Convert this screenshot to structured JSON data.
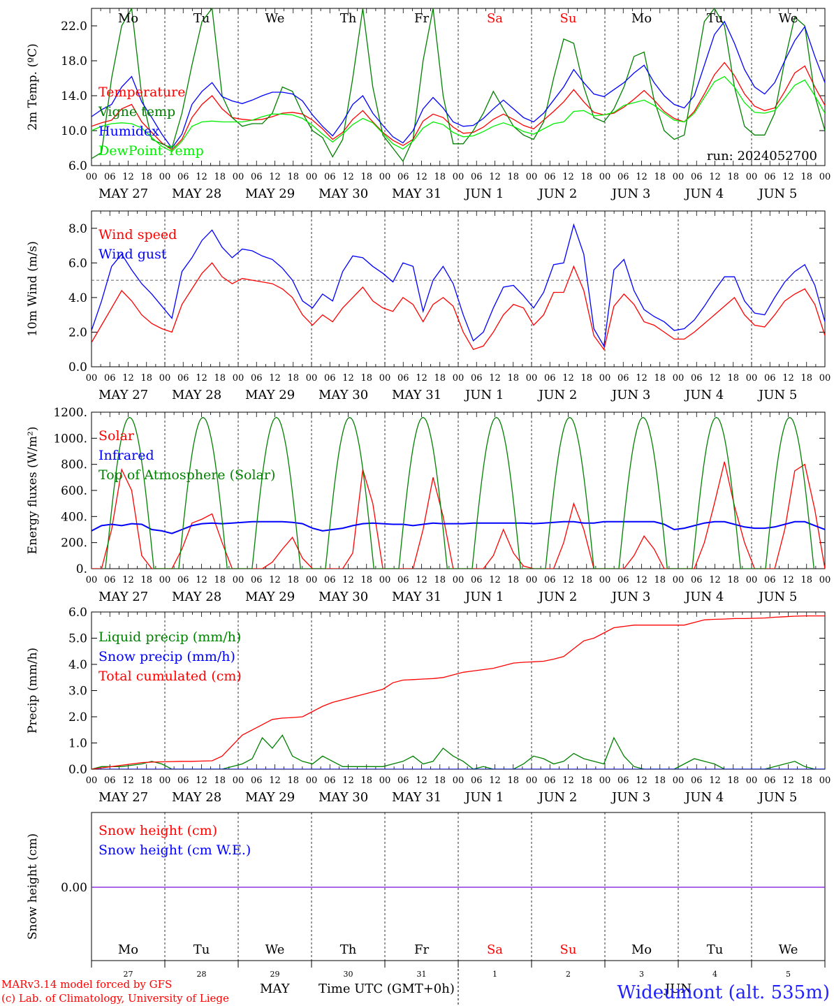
{
  "chart_data": [
    {
      "type": "line",
      "ylabel": "2m Temp. (ºC)",
      "ylim": [
        6.0,
        24.0
      ],
      "yticks": [
        "6.0",
        "10.0",
        "14.0",
        "18.0",
        "22.0"
      ],
      "annotation": "run: 2024052700",
      "legend": [
        "Temperature",
        "Vigne temp",
        "Humidex",
        "DewPoint Temp"
      ],
      "series": [
        {
          "name": "Temperature",
          "color": "#ff0000",
          "values": [
            10.5,
            10.9,
            11.2,
            12.5,
            13.0,
            11.0,
            9.8,
            8.6,
            7.8,
            9.0,
            11.5,
            13.0,
            14.0,
            12.5,
            11.5,
            11.3,
            11.2,
            11.3,
            11.6,
            12.0,
            12.1,
            11.9,
            11.2,
            10.2,
            9.0,
            9.8,
            11.3,
            12.3,
            11.0,
            9.8,
            8.9,
            8.3,
            9.0,
            11.1,
            11.9,
            11.5,
            10.4,
            9.7,
            9.8,
            10.4,
            11.3,
            11.9,
            11.3,
            10.6,
            10.2,
            11.2,
            12.2,
            13.3,
            14.7,
            13.3,
            12.1,
            11.8,
            12.0,
            12.7,
            13.6,
            14.6,
            13.5,
            12.2,
            11.4,
            11.0,
            12.2,
            14.2,
            16.4,
            17.8,
            16.3,
            14.2,
            12.8,
            12.3,
            12.6,
            14.5,
            16.6,
            17.4,
            15.0,
            12.9
          ]
        },
        {
          "name": "Vigne temp",
          "color": "#008000",
          "values": [
            6.8,
            7.5,
            16.0,
            22.0,
            24.0,
            14.0,
            9.0,
            8.5,
            8.0,
            12.0,
            17.5,
            22.5,
            24.0,
            14.0,
            11.5,
            10.5,
            10.8,
            10.8,
            12.0,
            15.0,
            14.5,
            12.0,
            10.0,
            9.2,
            7.0,
            9.0,
            16.0,
            24.0,
            15.0,
            9.5,
            8.0,
            6.5,
            9.0,
            18.0,
            24.0,
            14.0,
            8.5,
            8.5,
            10.0,
            12.0,
            14.5,
            12.5,
            10.5,
            9.5,
            9.0,
            11.0,
            16.0,
            20.5,
            20.0,
            15.0,
            11.5,
            11.0,
            12.5,
            15.0,
            18.5,
            19.0,
            13.5,
            10.0,
            9.0,
            9.5,
            16.0,
            22.5,
            24.0,
            22.0,
            15.0,
            10.5,
            9.5,
            9.5,
            12.0,
            18.0,
            23.0,
            22.0,
            14.0,
            10.0
          ]
        },
        {
          "name": "Humidex",
          "color": "#0000ff",
          "values": [
            11.6,
            12.4,
            13.0,
            15.0,
            16.2,
            13.3,
            11.5,
            9.6,
            8.0,
            9.6,
            13.0,
            14.5,
            15.5,
            13.9,
            13.4,
            13.1,
            13.5,
            14.0,
            14.4,
            14.4,
            14.2,
            13.4,
            11.8,
            10.5,
            9.4,
            11.0,
            13.0,
            14.0,
            12.0,
            10.6,
            9.3,
            8.6,
            10.0,
            12.5,
            13.8,
            12.6,
            11.0,
            10.5,
            10.6,
            11.4,
            12.5,
            13.5,
            12.5,
            11.5,
            11.0,
            12.0,
            13.5,
            15.0,
            17.0,
            15.5,
            14.2,
            13.9,
            14.7,
            15.5,
            16.6,
            17.5,
            15.5,
            14.0,
            13.0,
            12.6,
            14.0,
            17.5,
            21.0,
            22.5,
            20.0,
            17.0,
            15.0,
            14.2,
            15.5,
            18.0,
            20.3,
            21.9,
            18.5,
            15.5
          ]
        },
        {
          "name": "DewPoint Temp",
          "color": "#00ee00",
          "values": [
            10.0,
            10.5,
            10.8,
            10.9,
            10.8,
            10.3,
            9.2,
            8.2,
            7.6,
            8.8,
            10.5,
            11.0,
            11.1,
            11.0,
            11.0,
            11.0,
            11.2,
            11.6,
            11.9,
            11.9,
            11.8,
            11.4,
            10.6,
            9.6,
            8.7,
            9.6,
            10.7,
            11.4,
            10.9,
            9.7,
            8.5,
            7.9,
            8.8,
            10.3,
            11.0,
            10.7,
            9.8,
            9.3,
            9.4,
            9.9,
            10.5,
            10.9,
            10.5,
            9.9,
            9.6,
            10.2,
            10.8,
            11.0,
            12.2,
            12.3,
            11.7,
            11.8,
            12.1,
            12.9,
            13.2,
            13.5,
            12.9,
            12.0,
            11.2,
            11.0,
            12.0,
            13.8,
            15.6,
            16.2,
            15.0,
            13.2,
            12.1,
            12.0,
            12.3,
            13.7,
            15.2,
            15.8,
            14.0,
            12.0
          ]
        }
      ]
    },
    {
      "type": "line",
      "ylabel": "10m Wind (m/s)",
      "ylim": [
        0.0,
        9.0
      ],
      "yticks": [
        "0.0",
        "2.0",
        "4.0",
        "6.0",
        "8.0"
      ],
      "reference_line": 5.0,
      "legend": [
        "Wind speed",
        "Wind gust"
      ],
      "series": [
        {
          "name": "Wind speed",
          "color": "#ff0000",
          "values": [
            1.4,
            2.4,
            3.4,
            4.4,
            3.8,
            3.0,
            2.5,
            2.2,
            2.0,
            3.6,
            4.5,
            5.4,
            6.0,
            5.2,
            4.8,
            5.1,
            5.0,
            4.9,
            4.8,
            4.5,
            4.0,
            3.0,
            2.4,
            3.0,
            2.6,
            3.4,
            4.0,
            4.6,
            3.8,
            3.4,
            3.2,
            4.0,
            3.6,
            2.6,
            3.6,
            4.0,
            3.5,
            2.0,
            1.0,
            1.2,
            2.0,
            3.0,
            3.6,
            3.4,
            2.4,
            3.0,
            4.3,
            4.3,
            5.8,
            4.4,
            1.8,
            1.0,
            3.5,
            4.2,
            3.6,
            2.6,
            2.4,
            2.0,
            1.6,
            1.6,
            2.0,
            2.5,
            3.0,
            3.5,
            4.0,
            3.0,
            2.4,
            2.3,
            3.0,
            3.8,
            4.2,
            4.5,
            3.6,
            1.8
          ]
        },
        {
          "name": "Wind gust",
          "color": "#0000ff",
          "values": [
            2.1,
            3.8,
            5.8,
            6.5,
            5.6,
            4.8,
            4.2,
            3.5,
            2.8,
            5.5,
            6.3,
            7.3,
            7.9,
            6.9,
            6.3,
            6.8,
            6.7,
            6.4,
            6.2,
            5.7,
            5.0,
            3.8,
            3.4,
            4.2,
            3.8,
            5.5,
            6.4,
            6.3,
            5.8,
            5.4,
            4.9,
            6.0,
            5.8,
            3.2,
            5.0,
            5.8,
            4.8,
            3.0,
            1.5,
            2.0,
            3.4,
            4.6,
            4.7,
            4.1,
            3.4,
            4.3,
            5.9,
            6.0,
            8.2,
            6.5,
            2.2,
            1.2,
            5.6,
            6.2,
            4.4,
            3.3,
            2.9,
            2.6,
            2.1,
            2.2,
            2.7,
            3.5,
            4.4,
            5.2,
            5.2,
            3.8,
            3.1,
            3.0,
            4.0,
            4.9,
            5.5,
            5.9,
            4.7,
            2.6
          ]
        }
      ]
    },
    {
      "type": "line",
      "ylabel": "Energy fluxes (W/m²)",
      "ylim": [
        0,
        1200
      ],
      "yticks": [
        "0.",
        "200.",
        "400.",
        "600.",
        "800.",
        "1000.",
        "1200."
      ],
      "legend": [
        "Solar",
        "Infrared",
        "Top of Atmosphere (Solar)"
      ],
      "series": [
        {
          "name": "Solar",
          "color": "#ff0000",
          "values": [
            0,
            0,
            300,
            760,
            600,
            100,
            0,
            0,
            0,
            150,
            350,
            380,
            420,
            200,
            0,
            0,
            0,
            0,
            50,
            150,
            240,
            80,
            0,
            0,
            0,
            0,
            120,
            760,
            500,
            0,
            0,
            0,
            0,
            300,
            700,
            400,
            0,
            0,
            0,
            0,
            100,
            300,
            120,
            20,
            0,
            0,
            0,
            200,
            500,
            300,
            0,
            0,
            0,
            0,
            100,
            250,
            150,
            0,
            0,
            0,
            0,
            200,
            500,
            820,
            480,
            200,
            0,
            0,
            0,
            300,
            750,
            800,
            450,
            0
          ]
        },
        {
          "name": "Infrared",
          "color": "#0000ff",
          "values": [
            290,
            330,
            340,
            330,
            345,
            340,
            300,
            290,
            270,
            300,
            330,
            345,
            350,
            345,
            350,
            355,
            360,
            360,
            360,
            360,
            355,
            345,
            310,
            290,
            300,
            310,
            330,
            345,
            350,
            345,
            340,
            340,
            330,
            340,
            350,
            345,
            345,
            345,
            350,
            350,
            350,
            350,
            350,
            350,
            345,
            350,
            355,
            360,
            360,
            350,
            350,
            360,
            360,
            360,
            360,
            360,
            360,
            340,
            300,
            310,
            330,
            350,
            360,
            360,
            340,
            320,
            310,
            310,
            320,
            340,
            360,
            360,
            330,
            300
          ]
        },
        {
          "name": "Top of Atmosphere (Solar)",
          "color": "#008000",
          "values": []
        }
      ]
    },
    {
      "type": "line",
      "ylabel": "Precip (mm/h)",
      "ylim": [
        0.0,
        6.0
      ],
      "yticks": [
        "0.0",
        "1.0",
        "2.0",
        "3.0",
        "4.0",
        "5.0",
        "6.0"
      ],
      "legend": [
        "Liquid precip (mm/h)",
        "Snow precip (mm/h)",
        "Total cumulated (cm)"
      ],
      "series": [
        {
          "name": "Liquid precip (mm/h)",
          "color": "#008000",
          "values": [
            0,
            0.1,
            0.1,
            0.1,
            0.15,
            0.2,
            0.3,
            0.2,
            0,
            0,
            0,
            0,
            0,
            0,
            0.1,
            0.2,
            0.4,
            1.2,
            0.8,
            1.3,
            0.5,
            0.3,
            0.2,
            0.5,
            0.3,
            0.1,
            0.1,
            0.1,
            0.1,
            0.1,
            0.2,
            0.3,
            0.5,
            0.2,
            0.3,
            0.8,
            0.5,
            0.3,
            0,
            0.1,
            0,
            0,
            0,
            0.2,
            0.5,
            0.4,
            0.2,
            0.3,
            0.6,
            0.4,
            0.3,
            0.2,
            1.2,
            0.5,
            0.1,
            0,
            0,
            0,
            0,
            0.2,
            0.4,
            0.3,
            0.2,
            0,
            0,
            0,
            0,
            0,
            0.1,
            0.2,
            0.3,
            0.1,
            0,
            0
          ]
        },
        {
          "name": "Snow precip (mm/h)",
          "color": "#0000ff",
          "values": []
        },
        {
          "name": "Total cumulated (cm)",
          "color": "#ff0000",
          "values": [
            0.0,
            0.05,
            0.1,
            0.15,
            0.2,
            0.25,
            0.27,
            0.28,
            0.29,
            0.3,
            0.3,
            0.31,
            0.32,
            0.5,
            0.9,
            1.3,
            1.5,
            1.7,
            1.9,
            1.95,
            1.97,
            2.0,
            2.2,
            2.4,
            2.55,
            2.65,
            2.75,
            2.85,
            2.95,
            3.05,
            3.3,
            3.4,
            3.42,
            3.44,
            3.46,
            3.5,
            3.6,
            3.7,
            3.75,
            3.8,
            3.85,
            3.95,
            4.05,
            4.08,
            4.1,
            4.12,
            4.2,
            4.3,
            4.6,
            4.9,
            5.0,
            5.2,
            5.4,
            5.45,
            5.5,
            5.5,
            5.5,
            5.5,
            5.5,
            5.5,
            5.6,
            5.7,
            5.72,
            5.73,
            5.75,
            5.75,
            5.76,
            5.77,
            5.8,
            5.82,
            5.84,
            5.85,
            5.85,
            5.85
          ]
        }
      ]
    },
    {
      "type": "line",
      "ylabel": "Snow height (cm)",
      "yticks": [
        "0.00"
      ],
      "legend": [
        "Snow height (cm)",
        "Snow height (cm W.E.)"
      ],
      "series": [
        {
          "name": "Snow height (cm)",
          "color": "#ff0000",
          "values": [
            0,
            0
          ]
        },
        {
          "name": "Snow height (cm W.E.)",
          "color": "#0000ff",
          "values": [
            0,
            0
          ]
        }
      ]
    }
  ],
  "x_axis": {
    "hour_ticks": [
      "00",
      "06",
      "12",
      "18"
    ],
    "date_labels": [
      "MAY 27",
      "MAY 28",
      "MAY 29",
      "MAY 30",
      "MAY 31",
      "JUN  1",
      "JUN  2",
      "JUN  3",
      "JUN  4",
      "JUN  5"
    ],
    "weekdays": [
      "Mo",
      "Tu",
      "We",
      "Th",
      "Fr",
      "Sa",
      "Su",
      "Mo",
      "Tu",
      "We"
    ],
    "weekend_days": [
      5,
      6
    ],
    "day_numbers": [
      "27",
      "28",
      "29",
      "30",
      "31",
      "1",
      "2",
      "3",
      "4",
      "5"
    ],
    "month_left": "MAY",
    "month_right": "JUN",
    "title": "Time UTC (GMT+0h)"
  },
  "colors": {
    "weekday": "#000000",
    "weekend": "#ff0000"
  },
  "footer": {
    "credit_1": "MARv3.14 model forced by GFS",
    "credit_2": "(c) Lab. of Climatology, University of Liege",
    "station": "Wideumont (alt. 535m)"
  }
}
